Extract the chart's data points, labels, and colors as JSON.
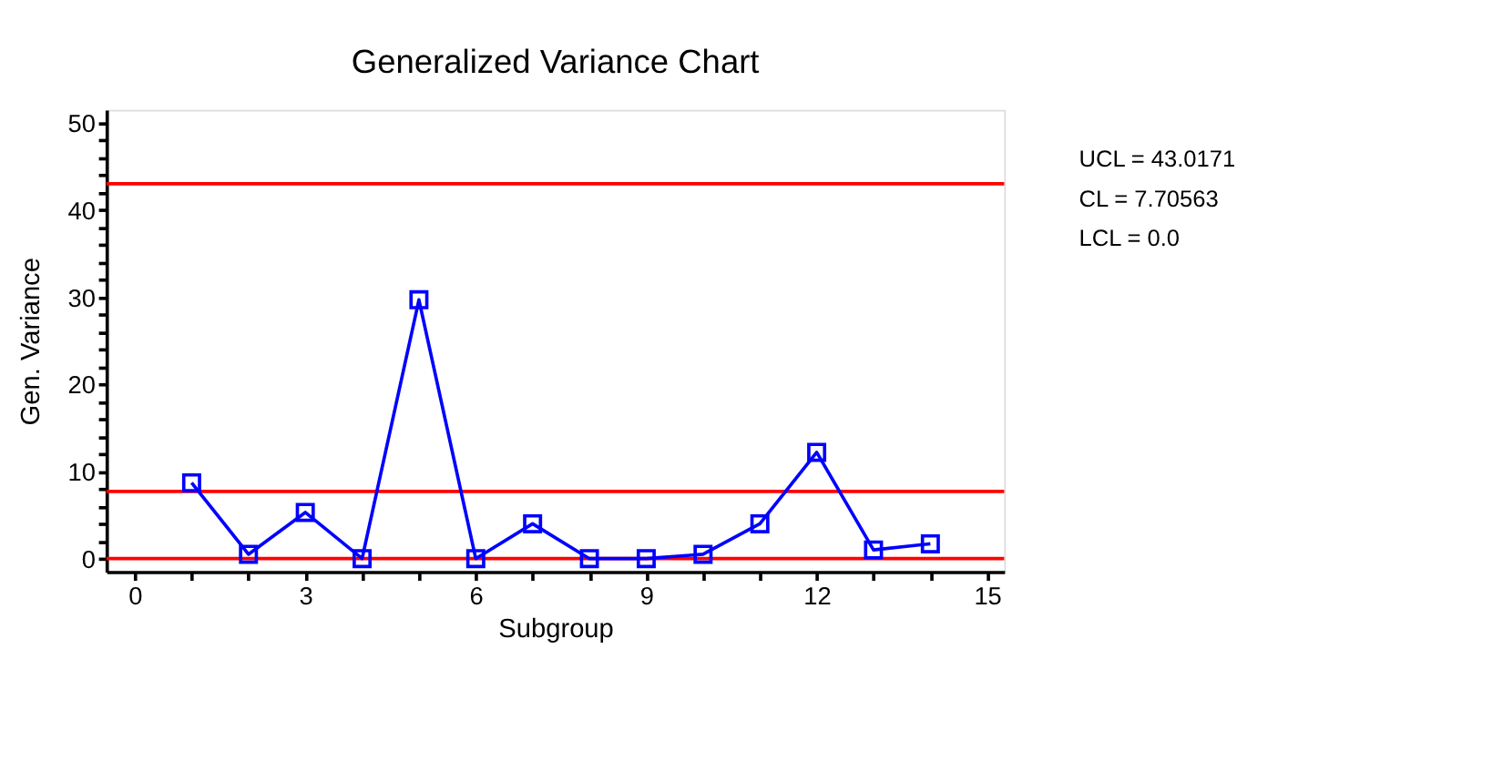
{
  "chart_data": {
    "type": "line",
    "title": "Generalized Variance Chart",
    "xlabel": "Subgroup",
    "ylabel": "Gen. Variance",
    "x": [
      1,
      2,
      3,
      4,
      5,
      6,
      7,
      8,
      9,
      10,
      11,
      12,
      13,
      14
    ],
    "series": [
      {
        "color": "#0000ff",
        "values": [
          8.7,
          0.5,
          5.3,
          0,
          29.7,
          0,
          4.0,
          0,
          0,
          0.5,
          4.0,
          12.2,
          1.0,
          1.7
        ]
      }
    ],
    "marker": "square",
    "line_style": "solid",
    "grid": false,
    "xlim": [
      -0.5,
      15.3
    ],
    "ylim": [
      -1.5,
      51.5
    ],
    "xticks": [
      0,
      {
        "value": 1,
        "label": null
      },
      {
        "value": 2,
        "label": null
      },
      3,
      {
        "value": 4,
        "label": null
      },
      {
        "value": 5,
        "label": null
      },
      6,
      {
        "value": 7,
        "label": null
      },
      {
        "value": 8,
        "label": null
      },
      9,
      {
        "value": 10,
        "label": null
      },
      {
        "value": 11,
        "label": null
      },
      12,
      {
        "value": 13,
        "label": null
      },
      {
        "value": 14,
        "label": null
      },
      15
    ],
    "yticks": [
      0,
      {
        "value": 2,
        "label": null
      },
      {
        "value": 4,
        "label": null
      },
      {
        "value": 6,
        "label": null
      },
      {
        "value": 8,
        "label": null
      },
      10,
      {
        "value": 12,
        "label": null
      },
      {
        "value": 14,
        "label": null
      },
      {
        "value": 16,
        "label": null
      },
      {
        "value": 18,
        "label": null
      },
      20,
      {
        "value": 22,
        "label": null
      },
      {
        "value": 24,
        "label": null
      },
      {
        "value": 26,
        "label": null
      },
      {
        "value": 28,
        "label": null
      },
      30,
      {
        "value": 32,
        "label": null
      },
      {
        "value": 34,
        "label": null
      },
      {
        "value": 36,
        "label": null
      },
      {
        "value": 38,
        "label": null
      },
      40,
      {
        "value": 42,
        "label": null
      },
      {
        "value": 44,
        "label": null
      },
      {
        "value": 46,
        "label": null
      },
      {
        "value": 48,
        "label": null
      },
      50
    ],
    "ref_lines": [
      {
        "axis": "y",
        "value": 43.0171,
        "color": "#ff0000"
      },
      {
        "axis": "y",
        "value": 7.70563,
        "color": "#ff0000"
      },
      {
        "axis": "y",
        "value": 0.0,
        "color": "#ff0000"
      }
    ],
    "annotations": [
      "UCL = 43.0171",
      "CL = 7.70563",
      "LCL = 0.0"
    ]
  }
}
